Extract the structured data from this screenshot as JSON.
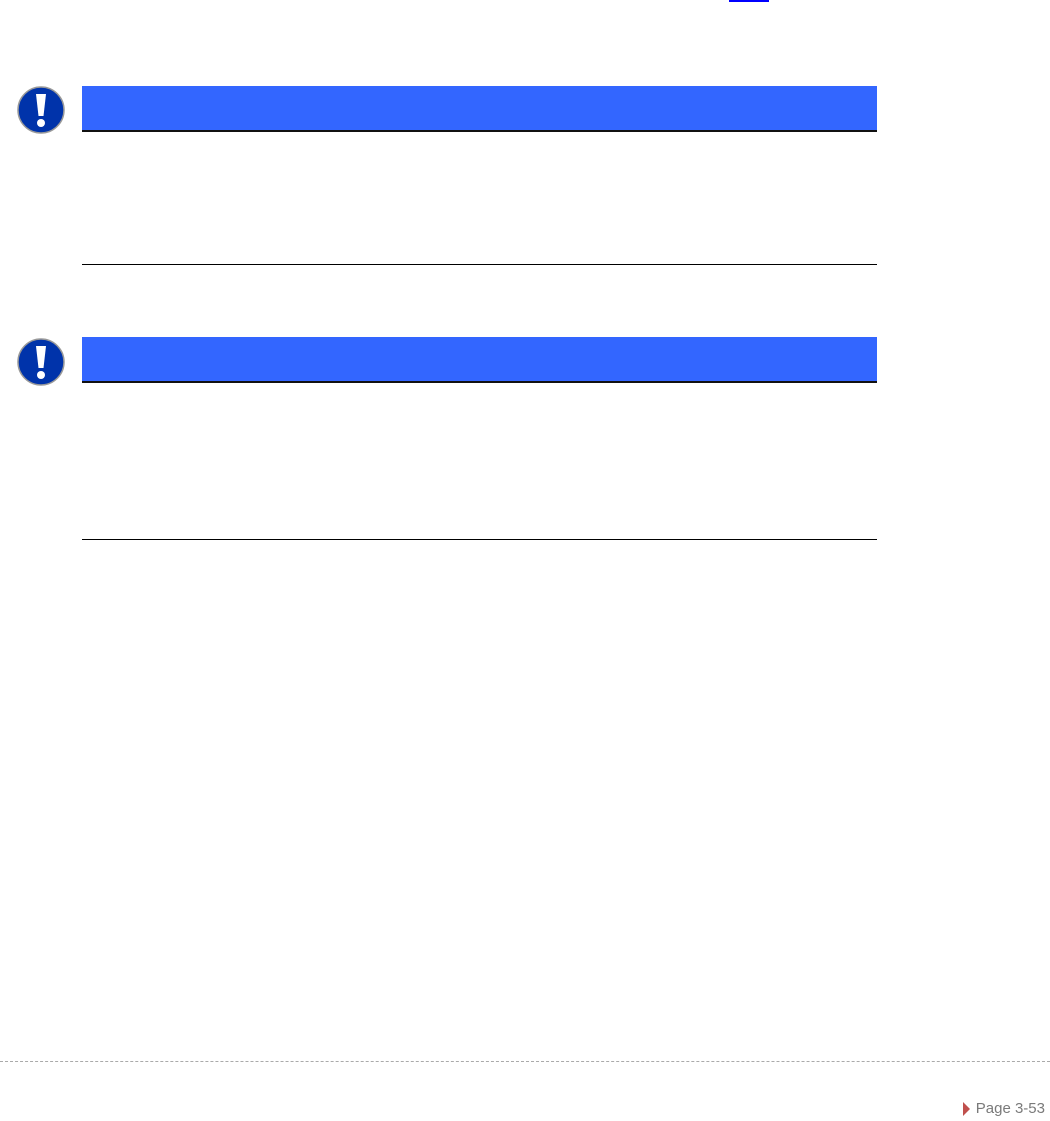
{
  "notices": [
    {
      "icon": "exclamation-icon",
      "color": "#3366ff"
    },
    {
      "icon": "exclamation-icon",
      "color": "#3366ff"
    }
  ],
  "footer": {
    "page_label": "Page 3-53",
    "marker_color": "#c0504d"
  }
}
